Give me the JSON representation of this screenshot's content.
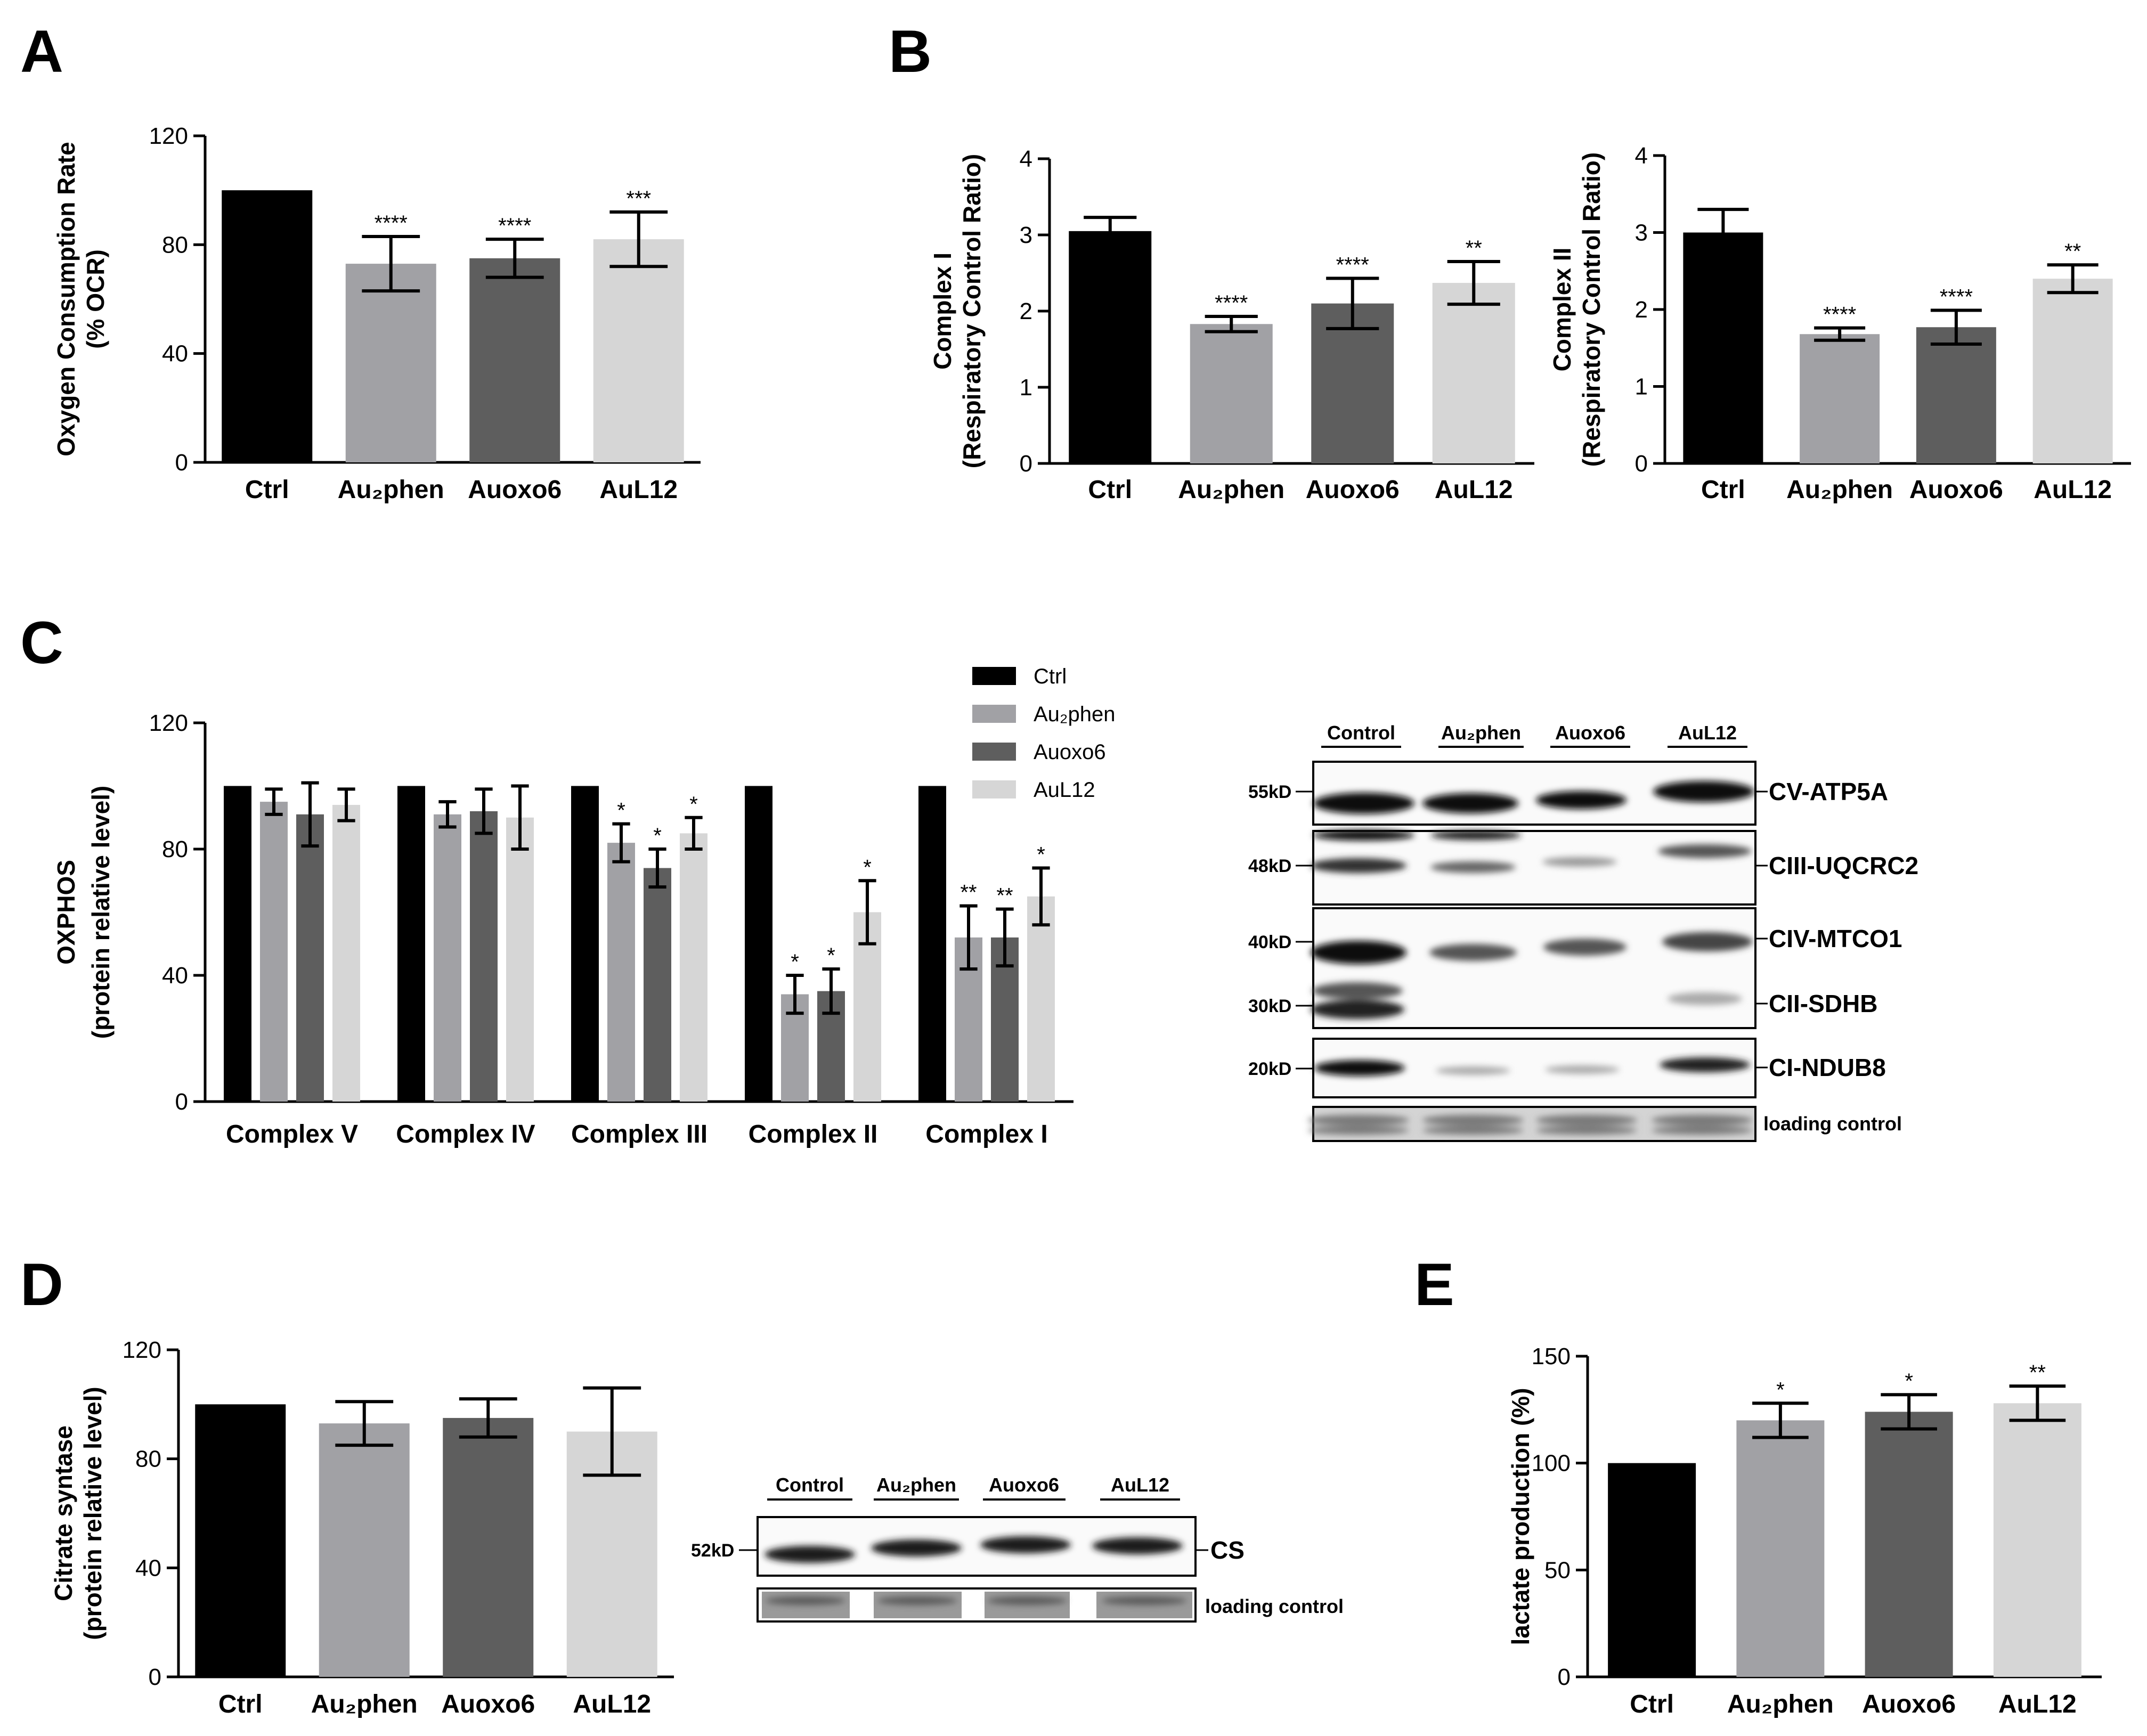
{
  "figure": {
    "panel_labels": [
      "A",
      "B",
      "C",
      "D",
      "E"
    ]
  },
  "colors": {
    "Ctrl": "#000000",
    "Au2phen": "#a1a1a5",
    "Auoxo6": "#5e5e5e",
    "AuL12": "#d6d6d6"
  },
  "legend": {
    "entries": [
      {
        "label": "Ctrl",
        "color": "#000000"
      },
      {
        "label": "Au₂phen",
        "color": "#a1a1a5"
      },
      {
        "label": "Auoxo6",
        "color": "#5e5e5e"
      },
      {
        "label": "AuL12",
        "color": "#d6d6d6"
      }
    ]
  },
  "chart_data": [
    {
      "id": "A",
      "type": "bar",
      "ylabel_lines": [
        "Oxygen Consumption Rate",
        "(% OCR)"
      ],
      "categories": [
        "Ctrl",
        "Au₂phen",
        "Auoxo6",
        "AuL12"
      ],
      "values": [
        100,
        73,
        75,
        82
      ],
      "errors": [
        0,
        10,
        7,
        10
      ],
      "significance": [
        "",
        "****",
        "****",
        "***"
      ],
      "ylim": [
        0,
        120
      ],
      "yticks": [
        0,
        40,
        80,
        120
      ]
    },
    {
      "id": "B1",
      "type": "bar",
      "ylabel_lines": [
        "Complex I",
        "(Respiratory Control Ratio)"
      ],
      "categories": [
        "Ctrl",
        "Au₂phen",
        "Auoxo6",
        "AuL12"
      ],
      "values": [
        3.05,
        1.83,
        2.1,
        2.37
      ],
      "errors": [
        0.18,
        0.1,
        0.33,
        0.28
      ],
      "significance": [
        "",
        "****",
        "****",
        "**"
      ],
      "ylim": [
        0,
        4
      ],
      "yticks": [
        0,
        1,
        2,
        3,
        4
      ]
    },
    {
      "id": "B2",
      "type": "bar",
      "ylabel_lines": [
        "Complex II",
        "(Respiratory Control Ratio)"
      ],
      "categories": [
        "Ctrl",
        "Au₂phen",
        "Auoxo6",
        "AuL12"
      ],
      "values": [
        3.0,
        1.68,
        1.77,
        2.4
      ],
      "errors": [
        0.3,
        0.08,
        0.22,
        0.18
      ],
      "significance": [
        "",
        "****",
        "****",
        "**"
      ],
      "ylim": [
        0,
        4
      ],
      "yticks": [
        0,
        1,
        2,
        3,
        4
      ]
    },
    {
      "id": "C",
      "type": "bar",
      "ylabel_lines": [
        "OXPHOS",
        "(protein relative level)"
      ],
      "categories": [
        "Complex V",
        "Complex IV",
        "Complex III",
        "Complex II",
        "Complex I"
      ],
      "series": [
        {
          "name": "Ctrl",
          "values": [
            100,
            100,
            100,
            100,
            100
          ],
          "errors": [
            0,
            0,
            0,
            0,
            0
          ],
          "significance": [
            "",
            "",
            "",
            "",
            ""
          ]
        },
        {
          "name": "Au₂phen",
          "values": [
            95,
            91,
            82,
            34,
            52
          ],
          "errors": [
            4,
            4,
            6,
            6,
            10
          ],
          "significance": [
            "",
            "",
            "*",
            "*",
            "**"
          ]
        },
        {
          "name": "Auoxo6",
          "values": [
            91,
            92,
            74,
            35,
            52
          ],
          "errors": [
            10,
            7,
            6,
            7,
            9
          ],
          "significance": [
            "",
            "",
            "*",
            "*",
            "**"
          ]
        },
        {
          "name": "AuL12",
          "values": [
            94,
            90,
            85,
            60,
            65
          ],
          "errors": [
            5,
            10,
            5,
            10,
            9
          ],
          "significance": [
            "",
            "",
            "*",
            "*",
            "*"
          ]
        }
      ],
      "ylim": [
        0,
        120
      ],
      "yticks": [
        0,
        40,
        80,
        120
      ]
    },
    {
      "id": "D",
      "type": "bar",
      "ylabel_lines": [
        "Citrate syntase",
        "(protein relative level)"
      ],
      "categories": [
        "Ctrl",
        "Au₂phen",
        "Auoxo6",
        "AuL12"
      ],
      "values": [
        100,
        93,
        95,
        90
      ],
      "errors": [
        0,
        8,
        7,
        16
      ],
      "significance": [
        "",
        "",
        "",
        ""
      ],
      "ylim": [
        0,
        120
      ],
      "yticks": [
        0,
        40,
        80,
        120
      ]
    },
    {
      "id": "E",
      "type": "bar",
      "ylabel_lines": [
        "lactate production (%)"
      ],
      "categories": [
        "Ctrl",
        "Au₂phen",
        "Auoxo6",
        "AuL12"
      ],
      "values": [
        100,
        120,
        124,
        128
      ],
      "errors": [
        0,
        8,
        8,
        8
      ],
      "significance": [
        "",
        "*",
        "*",
        "**"
      ],
      "ylim": [
        0,
        150
      ],
      "yticks": [
        0,
        50,
        100,
        150
      ]
    }
  ],
  "blots": {
    "C": {
      "lanes": [
        "Control",
        "Au₂phen",
        "Auoxo6",
        "AuL12"
      ],
      "bands": [
        {
          "kd": "55kD",
          "label": "CV-ATP5A"
        },
        {
          "kd": "48kD",
          "label": "CIII-UQCRC2"
        },
        {
          "kd": "40kD",
          "label": "CIV-MTCO1"
        },
        {
          "kd": "30kD",
          "label": "CII-SDHB"
        },
        {
          "kd": "20kD",
          "label": "CI-NDUB8"
        }
      ],
      "loading_label": "loading control"
    },
    "D": {
      "lanes": [
        "Control",
        "Au₂phen",
        "Auoxo6",
        "AuL12"
      ],
      "bands": [
        {
          "kd": "52kD",
          "label": "CS"
        }
      ],
      "loading_label": "loading control"
    }
  }
}
